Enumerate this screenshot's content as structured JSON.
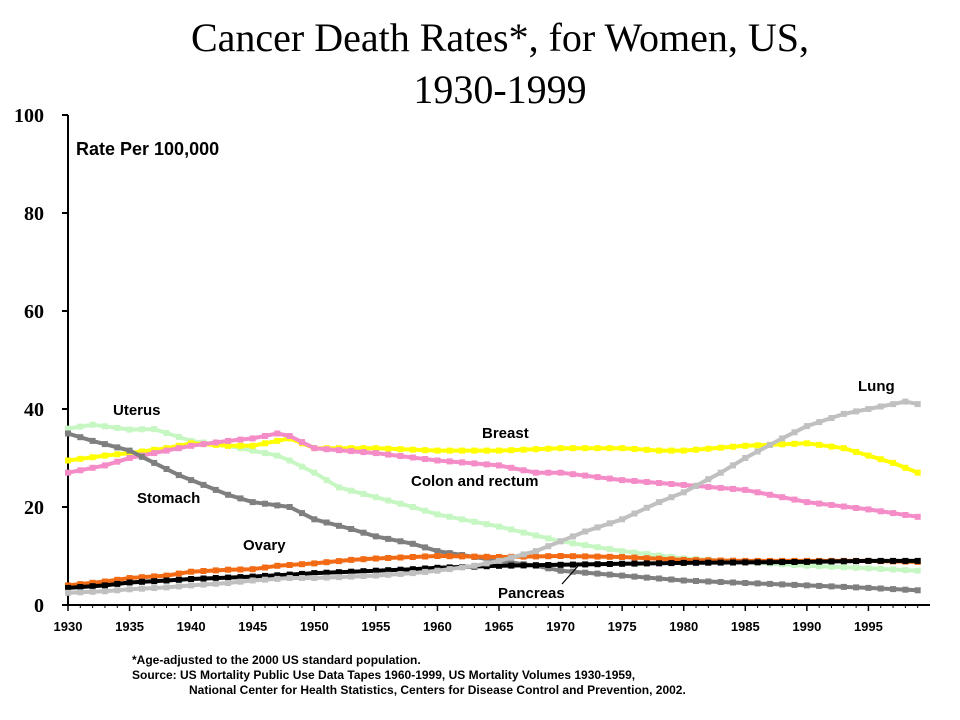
{
  "chart_data": {
    "type": "line",
    "title_line1": "Cancer Death Rates*, for Women, US,",
    "title_line2": "1930-1999",
    "ylabel": "Rate Per 100,000",
    "xlabel": "",
    "xlim": [
      1930,
      2000
    ],
    "ylim": [
      0,
      100
    ],
    "yticks": [
      0,
      20,
      40,
      60,
      80,
      100
    ],
    "xticks": [
      1930,
      1935,
      1940,
      1945,
      1950,
      1955,
      1960,
      1965,
      1970,
      1975,
      1980,
      1985,
      1990,
      1995
    ],
    "grid": false,
    "series": [
      {
        "name": "Uterus",
        "color": "#c6f7c2",
        "points": [
          [
            1930,
            36
          ],
          [
            1932,
            36.8
          ],
          [
            1935,
            35.8
          ],
          [
            1937,
            35.9
          ],
          [
            1940,
            33.5
          ],
          [
            1943,
            32.5
          ],
          [
            1945,
            31.5
          ],
          [
            1947,
            30.5
          ],
          [
            1948,
            29.5
          ],
          [
            1950,
            27
          ],
          [
            1952,
            24
          ],
          [
            1955,
            22
          ],
          [
            1958,
            20
          ],
          [
            1960,
            18.5
          ],
          [
            1965,
            16
          ],
          [
            1970,
            13
          ],
          [
            1975,
            11
          ],
          [
            1980,
            9.5
          ],
          [
            1985,
            8.8
          ],
          [
            1990,
            8
          ],
          [
            1995,
            7.5
          ],
          [
            1999,
            7
          ]
        ]
      },
      {
        "name": "Breast",
        "color": "#ffff00",
        "points": [
          [
            1930,
            29.5
          ],
          [
            1933,
            30.5
          ],
          [
            1935,
            31
          ],
          [
            1938,
            32
          ],
          [
            1940,
            33
          ],
          [
            1943,
            32.5
          ],
          [
            1945,
            32.5
          ],
          [
            1948,
            34
          ],
          [
            1950,
            32
          ],
          [
            1955,
            32
          ],
          [
            1960,
            31.5
          ],
          [
            1965,
            31.5
          ],
          [
            1970,
            32
          ],
          [
            1975,
            32
          ],
          [
            1978,
            31.5
          ],
          [
            1980,
            31.5
          ],
          [
            1985,
            32.5
          ],
          [
            1990,
            33
          ],
          [
            1993,
            32
          ],
          [
            1995,
            30.5
          ],
          [
            1997,
            29
          ],
          [
            1999,
            27
          ]
        ]
      },
      {
        "name": "Colon and rectum",
        "color": "#f48cc8",
        "points": [
          [
            1930,
            27
          ],
          [
            1933,
            28.5
          ],
          [
            1935,
            30
          ],
          [
            1938,
            31.5
          ],
          [
            1940,
            32.5
          ],
          [
            1943,
            33.5
          ],
          [
            1945,
            34
          ],
          [
            1947,
            35
          ],
          [
            1948,
            34.5
          ],
          [
            1950,
            32
          ],
          [
            1955,
            31
          ],
          [
            1960,
            29.5
          ],
          [
            1965,
            28.5
          ],
          [
            1968,
            27
          ],
          [
            1970,
            27
          ],
          [
            1975,
            25.5
          ],
          [
            1980,
            24.5
          ],
          [
            1985,
            23.5
          ],
          [
            1990,
            21
          ],
          [
            1995,
            19.5
          ],
          [
            1999,
            18
          ]
        ]
      },
      {
        "name": "Stomach",
        "color": "#7f7f7f",
        "points": [
          [
            1930,
            35
          ],
          [
            1932,
            33.5
          ],
          [
            1935,
            31.5
          ],
          [
            1937,
            29
          ],
          [
            1939,
            26.5
          ],
          [
            1941,
            24.5
          ],
          [
            1943,
            22.5
          ],
          [
            1945,
            21
          ],
          [
            1948,
            20
          ],
          [
            1950,
            17.5
          ],
          [
            1953,
            15.5
          ],
          [
            1955,
            14
          ],
          [
            1958,
            12.5
          ],
          [
            1960,
            11
          ],
          [
            1963,
            9.8
          ],
          [
            1965,
            9
          ],
          [
            1968,
            8
          ],
          [
            1970,
            7
          ],
          [
            1975,
            6
          ],
          [
            1980,
            5
          ],
          [
            1985,
            4.5
          ],
          [
            1990,
            4
          ],
          [
            1995,
            3.5
          ],
          [
            1999,
            3
          ]
        ]
      },
      {
        "name": "Ovary",
        "color": "#f26b14",
        "points": [
          [
            1930,
            4
          ],
          [
            1933,
            4.8
          ],
          [
            1935,
            5.5
          ],
          [
            1938,
            6
          ],
          [
            1940,
            6.8
          ],
          [
            1943,
            7.2
          ],
          [
            1945,
            7.3
          ],
          [
            1947,
            8
          ],
          [
            1950,
            8.5
          ],
          [
            1953,
            9.2
          ],
          [
            1955,
            9.5
          ],
          [
            1958,
            9.8
          ],
          [
            1960,
            10
          ],
          [
            1965,
            9.8
          ],
          [
            1970,
            10
          ],
          [
            1975,
            9.8
          ],
          [
            1980,
            9.2
          ],
          [
            1985,
            9
          ],
          [
            1990,
            9
          ],
          [
            1995,
            9
          ],
          [
            1999,
            8.8
          ]
        ]
      },
      {
        "name": "Pancreas",
        "color": "#000000",
        "points": [
          [
            1930,
            3.5
          ],
          [
            1933,
            4
          ],
          [
            1935,
            4.6
          ],
          [
            1938,
            5
          ],
          [
            1940,
            5.3
          ],
          [
            1943,
            5.6
          ],
          [
            1945,
            5.8
          ],
          [
            1948,
            6.2
          ],
          [
            1950,
            6.5
          ],
          [
            1953,
            6.8
          ],
          [
            1955,
            7
          ],
          [
            1958,
            7.3
          ],
          [
            1960,
            7.6
          ],
          [
            1965,
            8
          ],
          [
            1970,
            8.2
          ],
          [
            1975,
            8.4
          ],
          [
            1980,
            8.6
          ],
          [
            1985,
            8.7
          ],
          [
            1990,
            8.8
          ],
          [
            1995,
            9
          ],
          [
            1999,
            9
          ]
        ]
      },
      {
        "name": "Lung",
        "color": "#c0c0c0",
        "points": [
          [
            1930,
            2.5
          ],
          [
            1933,
            2.8
          ],
          [
            1935,
            3.2
          ],
          [
            1938,
            3.6
          ],
          [
            1940,
            4
          ],
          [
            1943,
            4.5
          ],
          [
            1945,
            5
          ],
          [
            1948,
            5.5
          ],
          [
            1950,
            5.5
          ],
          [
            1953,
            5.8
          ],
          [
            1955,
            6
          ],
          [
            1958,
            6.5
          ],
          [
            1960,
            7
          ],
          [
            1963,
            8
          ],
          [
            1965,
            9
          ],
          [
            1968,
            11
          ],
          [
            1970,
            13
          ],
          [
            1972,
            15
          ],
          [
            1975,
            17.5
          ],
          [
            1978,
            21
          ],
          [
            1980,
            23
          ],
          [
            1983,
            27
          ],
          [
            1985,
            30
          ],
          [
            1988,
            34
          ],
          [
            1990,
            36.5
          ],
          [
            1993,
            39
          ],
          [
            1995,
            40
          ],
          [
            1998,
            41.5
          ],
          [
            1999,
            41
          ]
        ]
      }
    ],
    "labels": [
      {
        "series": "Uterus",
        "text": "Uterus"
      },
      {
        "series": "Breast",
        "text": "Breast"
      },
      {
        "series": "Colon and rectum",
        "text": "Colon and rectum"
      },
      {
        "series": "Stomach",
        "text": "Stomach"
      },
      {
        "series": "Ovary",
        "text": "Ovary"
      },
      {
        "series": "Pancreas",
        "text": "Pancreas"
      },
      {
        "series": "Lung",
        "text": "Lung"
      }
    ]
  },
  "footnote": {
    "line1": "*Age-adjusted to the 2000 US standard population.",
    "line2": "Source:  US Mortality Public Use Data Tapes 1960-1999, US Mortality Volumes 1930-1959,",
    "line3": "National Center for Health Statistics, Centers for Disease Control and Prevention, 2002."
  }
}
